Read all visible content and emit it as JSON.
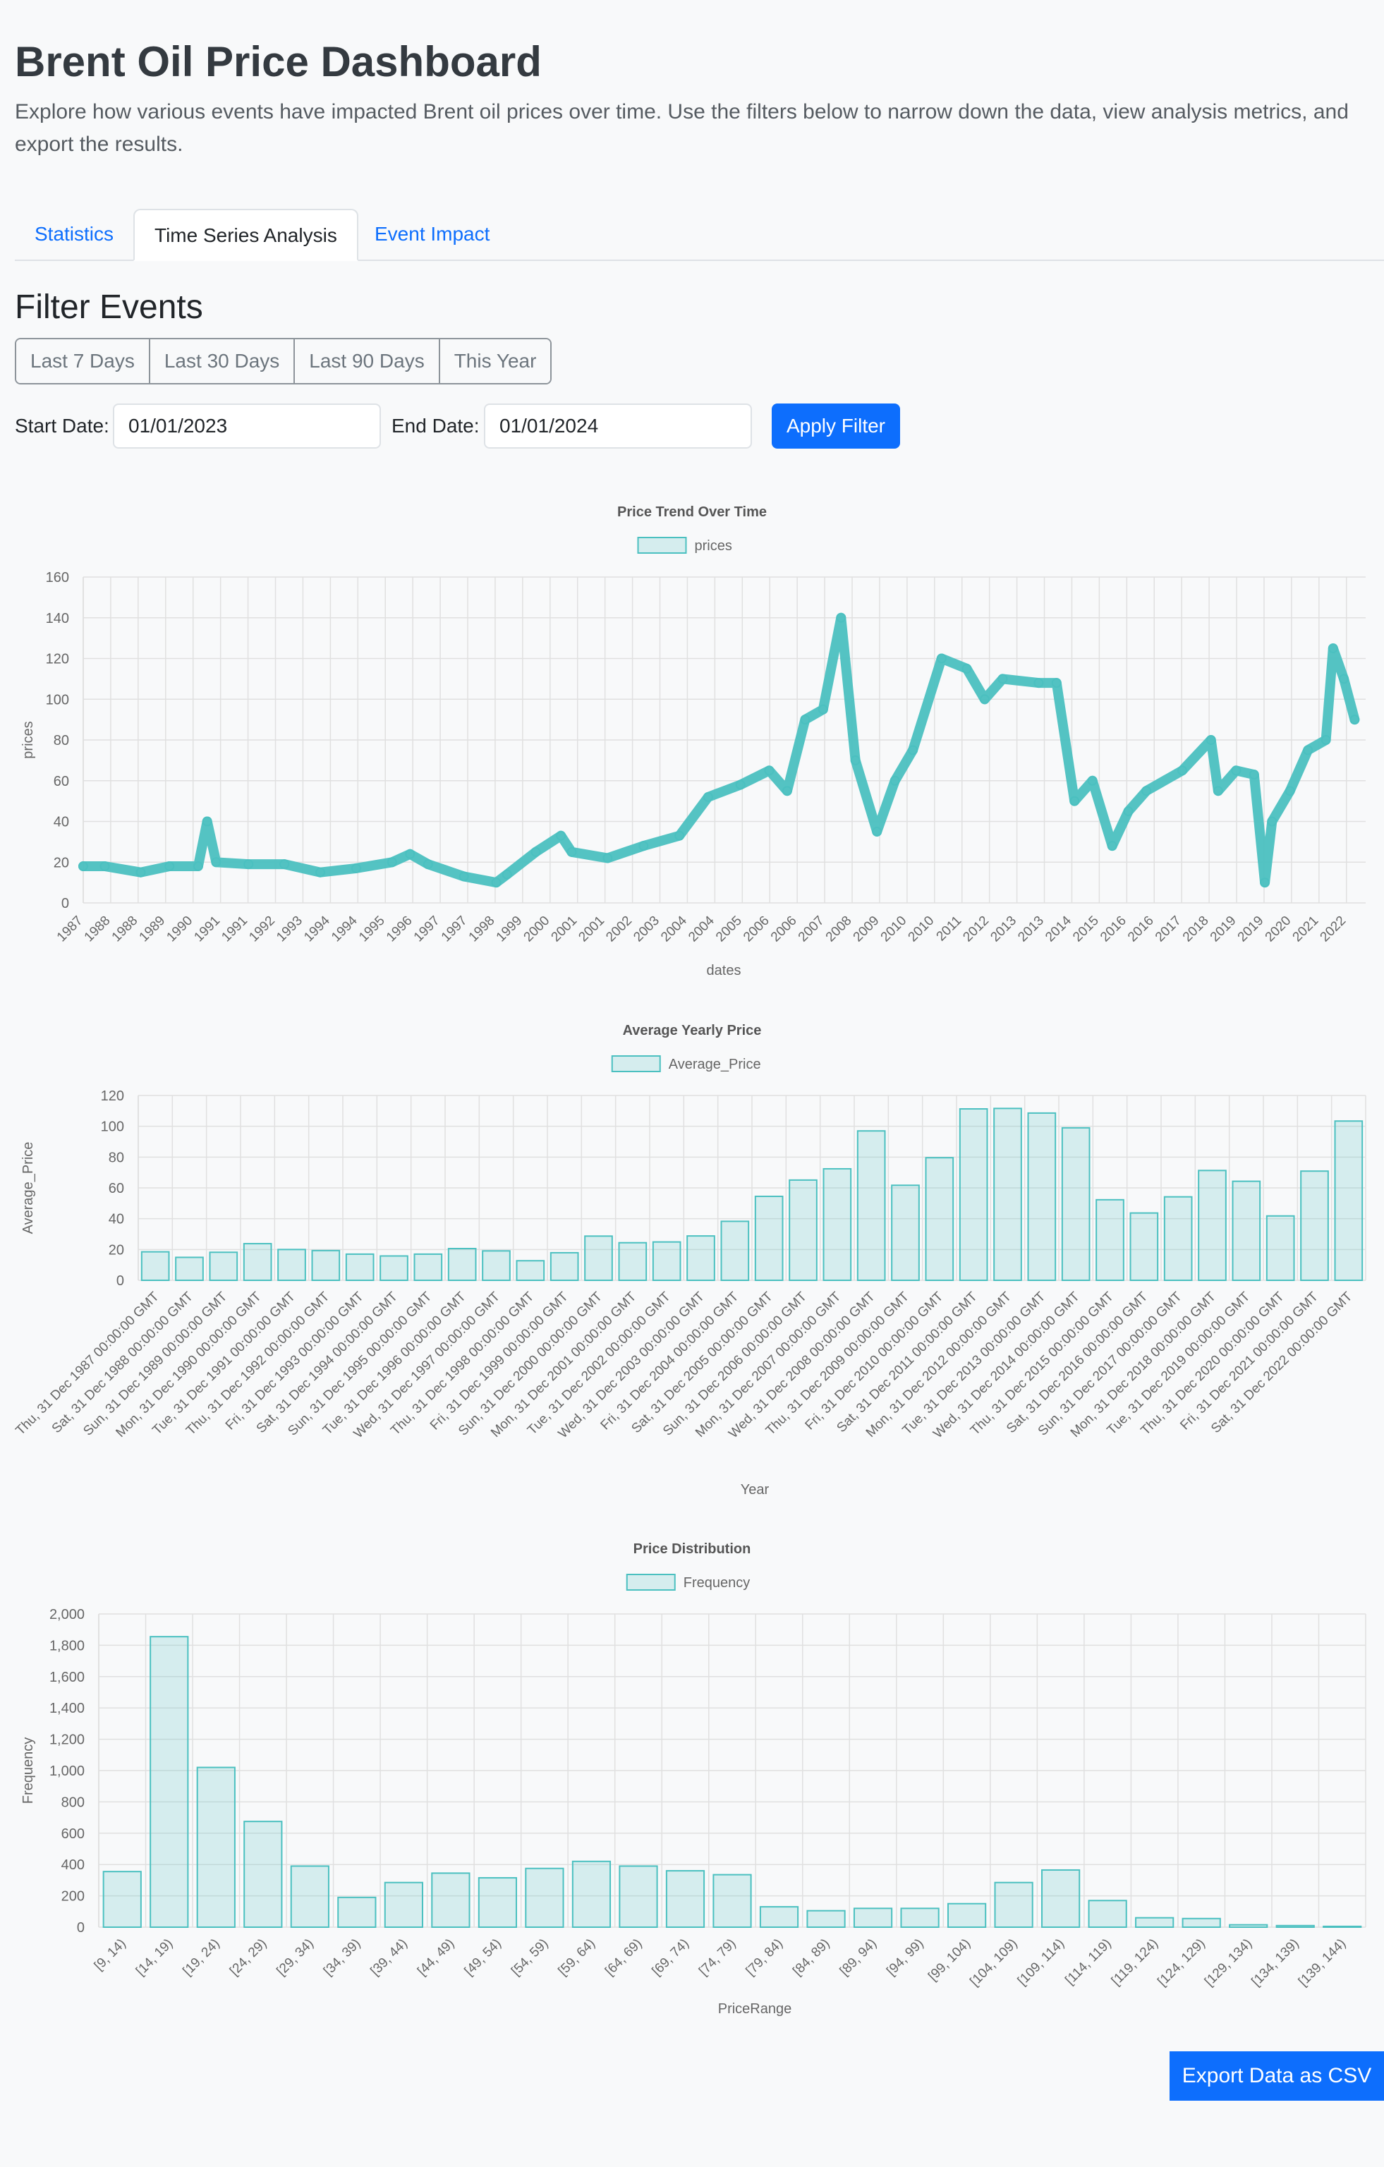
{
  "header": {
    "title": "Brent Oil Price Dashboard",
    "description": "Explore how various events have impacted Brent oil prices over time. Use the filters below to narrow down the data, view analysis metrics, and export the results."
  },
  "tabs": [
    {
      "label": "Statistics",
      "active": false
    },
    {
      "label": "Time Series Analysis",
      "active": true
    },
    {
      "label": "Event Impact",
      "active": false
    }
  ],
  "filters": {
    "title": "Filter Events",
    "quick": [
      "Last 7 Days",
      "Last 30 Days",
      "Last 90 Days",
      "This Year"
    ],
    "start_label": "Start Date:",
    "start_value": "01/01/2023",
    "end_label": "End Date:",
    "end_value": "01/01/2024",
    "apply_label": "Apply Filter"
  },
  "export_label": "Export Data as CSV",
  "colors": {
    "accent": "#0d6efd",
    "series_stroke": "#4bc0c0",
    "series_fill": "rgba(75,192,192,0.2)",
    "grid": "#e0e0e0",
    "axis_text": "#666666"
  },
  "chart_data": [
    {
      "type": "line",
      "title": "Price Trend Over Time",
      "xlabel": "dates",
      "ylabel": "prices",
      "legend": [
        "prices"
      ],
      "legend_position": "top",
      "grid": true,
      "ylim": [
        0,
        160
      ],
      "yticks": [
        0,
        20,
        40,
        60,
        80,
        100,
        120,
        140,
        160
      ],
      "tick_labels": [
        "1987",
        "1988",
        "1988",
        "1989",
        "1990",
        "1991",
        "1991",
        "1992",
        "1993",
        "1994",
        "1994",
        "1995",
        "1996",
        "1997",
        "1997",
        "1998",
        "1999",
        "2000",
        "2001",
        "2001",
        "2002",
        "2003",
        "2004",
        "2004",
        "2005",
        "2006",
        "2006",
        "2007",
        "2008",
        "2009",
        "2010",
        "2010",
        "2011",
        "2012",
        "2013",
        "2013",
        "2014",
        "2015",
        "2016",
        "2016",
        "2017",
        "2018",
        "2019",
        "2019",
        "2020",
        "2021",
        "2022"
      ],
      "x_years": [
        1987.4,
        1988.0,
        1989.0,
        1989.8,
        1990.6,
        1990.85,
        1991.1,
        1992.0,
        1993.0,
        1994.0,
        1995.0,
        1996.0,
        1996.5,
        1997.0,
        1998.0,
        1998.9,
        1999.2,
        2000.0,
        2000.7,
        2001.0,
        2002.0,
        2003.0,
        2004.0,
        2004.8,
        2005.7,
        2006.5,
        2007.0,
        2007.5,
        2008.0,
        2008.5,
        2008.9,
        2009.5,
        2010.0,
        2010.5,
        2011.3,
        2012.0,
        2012.5,
        2013.0,
        2014.0,
        2014.5,
        2015.0,
        2015.5,
        2016.05,
        2016.5,
        2017.0,
        2018.0,
        2018.8,
        2019.0,
        2019.5,
        2020.0,
        2020.3,
        2020.5,
        2021.0,
        2021.5,
        2022.0,
        2022.2,
        2022.5,
        2022.8
      ],
      "prices": [
        18,
        18,
        15,
        18,
        18,
        40,
        20,
        19,
        19,
        15,
        17,
        20,
        24,
        19,
        13,
        10,
        14,
        25,
        33,
        25,
        22,
        28,
        33,
        52,
        58,
        65,
        55,
        90,
        95,
        140,
        70,
        35,
        60,
        75,
        120,
        115,
        100,
        110,
        108,
        108,
        50,
        60,
        28,
        45,
        55,
        65,
        80,
        55,
        65,
        63,
        10,
        40,
        55,
        75,
        80,
        125,
        110,
        90
      ]
    },
    {
      "type": "bar",
      "title": "Average Yearly Price",
      "xlabel": "Year",
      "ylabel": "Average_Price",
      "legend": [
        "Average_Price"
      ],
      "legend_position": "top",
      "grid": true,
      "ylim": [
        0,
        120
      ],
      "yticks": [
        0,
        20,
        40,
        60,
        80,
        100,
        120
      ],
      "categories": [
        "Thu, 31 Dec 1987 00:00:00 GMT",
        "Sat, 31 Dec 1988 00:00:00 GMT",
        "Sun, 31 Dec 1989 00:00:00 GMT",
        "Mon, 31 Dec 1990 00:00:00 GMT",
        "Tue, 31 Dec 1991 00:00:00 GMT",
        "Thu, 31 Dec 1992 00:00:00 GMT",
        "Fri, 31 Dec 1993 00:00:00 GMT",
        "Sat, 31 Dec 1994 00:00:00 GMT",
        "Sun, 31 Dec 1995 00:00:00 GMT",
        "Tue, 31 Dec 1996 00:00:00 GMT",
        "Wed, 31 Dec 1997 00:00:00 GMT",
        "Thu, 31 Dec 1998 00:00:00 GMT",
        "Fri, 31 Dec 1999 00:00:00 GMT",
        "Sun, 31 Dec 2000 00:00:00 GMT",
        "Mon, 31 Dec 2001 00:00:00 GMT",
        "Tue, 31 Dec 2002 00:00:00 GMT",
        "Wed, 31 Dec 2003 00:00:00 GMT",
        "Fri, 31 Dec 2004 00:00:00 GMT",
        "Sat, 31 Dec 2005 00:00:00 GMT",
        "Sun, 31 Dec 2006 00:00:00 GMT",
        "Mon, 31 Dec 2007 00:00:00 GMT",
        "Wed, 31 Dec 2008 00:00:00 GMT",
        "Thu, 31 Dec 2009 00:00:00 GMT",
        "Fri, 31 Dec 2010 00:00:00 GMT",
        "Sat, 31 Dec 2011 00:00:00 GMT",
        "Mon, 31 Dec 2012 00:00:00 GMT",
        "Tue, 31 Dec 2013 00:00:00 GMT",
        "Wed, 31 Dec 2014 00:00:00 GMT",
        "Thu, 31 Dec 2015 00:00:00 GMT",
        "Sat, 31 Dec 2016 00:00:00 GMT",
        "Sun, 31 Dec 2017 00:00:00 GMT",
        "Mon, 31 Dec 2018 00:00:00 GMT",
        "Tue, 31 Dec 2019 00:00:00 GMT",
        "Thu, 31 Dec 2020 00:00:00 GMT",
        "Fri, 31 Dec 2021 00:00:00 GMT",
        "Sat, 31 Dec 2022 00:00:00 GMT"
      ],
      "values": [
        18.5,
        14.9,
        18.2,
        23.8,
        20.0,
        19.3,
        17.0,
        15.8,
        17.0,
        20.6,
        19.1,
        12.7,
        17.9,
        28.7,
        24.4,
        24.9,
        28.8,
        38.3,
        54.5,
        65.1,
        72.4,
        97.0,
        61.7,
        79.6,
        111.3,
        111.6,
        108.6,
        99.0,
        52.3,
        43.7,
        54.2,
        71.3,
        64.3,
        41.8,
        70.9,
        103.4
      ]
    },
    {
      "type": "bar",
      "title": "Price Distribution",
      "xlabel": "PriceRange",
      "ylabel": "Frequency",
      "legend": [
        "Frequency"
      ],
      "legend_position": "top",
      "grid": true,
      "ylim": [
        0,
        2000
      ],
      "yticks": [
        "0",
        "200",
        "400",
        "600",
        "800",
        "1,000",
        "1,200",
        "1,400",
        "1,600",
        "1,800",
        "2,000"
      ],
      "categories": [
        "[9, 14)",
        "[14, 19)",
        "[19, 24)",
        "[24, 29)",
        "[29, 34)",
        "[34, 39)",
        "[39, 44)",
        "[44, 49)",
        "[49, 54)",
        "[54, 59)",
        "[59, 64)",
        "[64, 69)",
        "[69, 74)",
        "[74, 79)",
        "[79, 84)",
        "[84, 89)",
        "[89, 94)",
        "[94, 99)",
        "[99, 104)",
        "[104, 109)",
        "[109, 114)",
        "[114, 119)",
        "[119, 124)",
        "[124, 129)",
        "[129, 134)",
        "[134, 139)",
        "[139, 144)"
      ],
      "values": [
        355,
        1855,
        1020,
        675,
        390,
        190,
        285,
        345,
        315,
        375,
        420,
        390,
        360,
        335,
        130,
        105,
        120,
        120,
        150,
        285,
        365,
        170,
        60,
        55,
        15,
        10,
        5
      ]
    }
  ]
}
